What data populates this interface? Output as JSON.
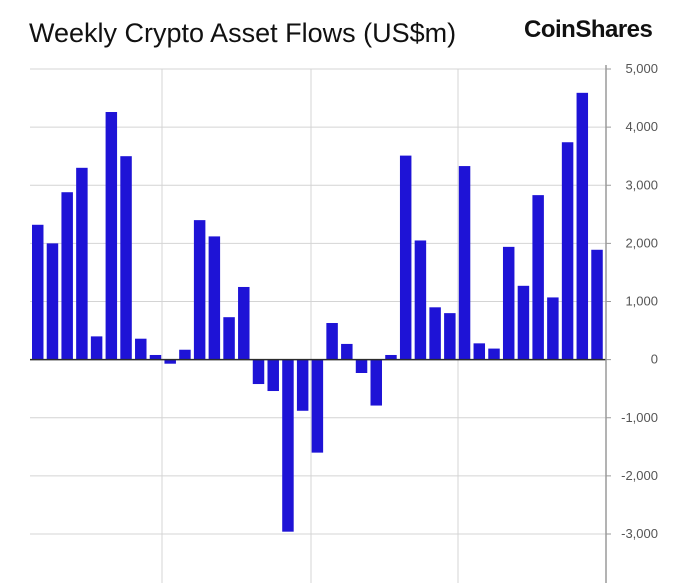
{
  "brand": "CoinShares",
  "chart_data": {
    "type": "bar",
    "title": "Weekly Crypto Asset Flows (US$m)",
    "xlabel": "",
    "ylabel": "",
    "ylim": [
      -3000,
      5000
    ],
    "yticks": [
      5000,
      4000,
      3000,
      2000,
      1000,
      0,
      -1000,
      -2000,
      -3000
    ],
    "ytick_labels": [
      "5,000",
      "4,000",
      "3,000",
      "2,000",
      "1,000",
      "0",
      "-1,000",
      "-2,000",
      "-3,000"
    ],
    "bar_color": "#1e13d6",
    "grid": true,
    "values": [
      2320,
      2000,
      2880,
      3300,
      400,
      4260,
      3500,
      360,
      80,
      -70,
      170,
      2400,
      2120,
      730,
      1250,
      -420,
      -540,
      -2960,
      -880,
      -1600,
      630,
      270,
      -230,
      -790,
      80,
      3510,
      2050,
      900,
      800,
      3330,
      280,
      190,
      1940,
      1270,
      2830,
      1070,
      3740,
      4590,
      1890
    ]
  }
}
